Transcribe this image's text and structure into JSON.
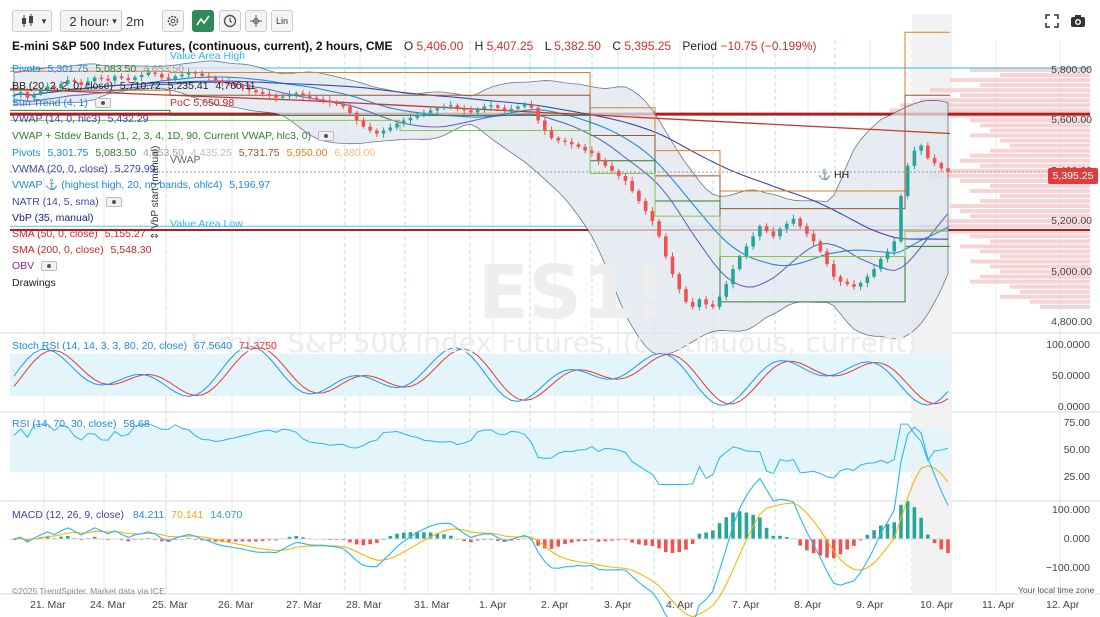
{
  "toolbar": {
    "chart_type_icon": "candlestick-icon",
    "interval": "2 hours",
    "interval_chevron": "▾",
    "secondary_interval": "2m",
    "settings_icon": "gear-icon",
    "indicator_icon": "indicator-icon",
    "clock_icon": "clock-icon",
    "crosshair_icon": "crosshair-icon",
    "scale_label": "Lin",
    "fullscreen_icon": "fullscreen-icon",
    "snapshot_icon": "camera-icon"
  },
  "header": {
    "title": "E-mini S&P 500 Index Futures, (continuous, current), 2 hours, CME",
    "o_label": "O",
    "o_value": "5,406.00",
    "h_label": "H",
    "h_value": "5,407.25",
    "l_label": "L",
    "l_value": "5,382.50",
    "c_label": "C",
    "c_value": "5,395.25",
    "period_label": "Period",
    "period_value": "−10.75 (−0.199%)"
  },
  "legend": {
    "pivots1": {
      "name": "Pivots",
      "v1": "5,301.75",
      "v2": "5,083.50",
      "v3": "4,653.50"
    },
    "bb": {
      "name": "BB (20, 2, 2, 0, close)",
      "v1": "5,710.72",
      "v2": "5,235.41",
      "v3": "4,760.11"
    },
    "sun_trend": {
      "name": "Sun Trend (4, 1)"
    },
    "vwap_hlc3": {
      "name": "VWAP (14, 0, hlc3)",
      "v1": "5,432.29"
    },
    "vwap_bands": {
      "name": "VWAP + Stdev Bands (1, 2, 3, 4, 1D, 90, Current VWAP, hlc3, 0)"
    },
    "pivots2": {
      "name": "Pivots",
      "v1": "5,301.75",
      "v2": "5,083.50",
      "v3": "4,653.50",
      "v4": "4,435.25",
      "v5": "5,731.75",
      "v6": "5,950.00",
      "v7": "6,380.00"
    },
    "vwma": {
      "name": "VWMA (20, 0, close)",
      "v1": "5,279.99"
    },
    "vwap_anchor": {
      "name": "VWAP ⚓ (highest high, 20, no bands, ohlc4)",
      "v1": "5,196.97"
    },
    "natr": {
      "name": "NATR (14, 5, sma)"
    },
    "vbp": {
      "name": "VbP (35, manual)"
    },
    "sma50": {
      "name": "SMA (50, 0, close)",
      "v1": "5,155.27"
    },
    "sma200": {
      "name": "SMA (200, 0, close)",
      "v1": "5,548.30"
    },
    "obv": {
      "name": "OBV"
    },
    "drawings": {
      "name": "Drawings"
    }
  },
  "annotations": {
    "value_area_high": "Value Area High",
    "value_area_low": "Value Area Low",
    "poc_label": "PoC",
    "poc_value": "5,650.98",
    "vwap_label": "VWAP",
    "hh_label": "HH",
    "vbp_start": "VbP start (manual)",
    "watermark": "ES1!",
    "watermark_sub": "E-mini S&P 500 Index Futures, (continuous, current)",
    "copyright": "©2025 TrendSpider. Market data via ICE",
    "local_time": "Your local time zone"
  },
  "price_axis": {
    "ticks": [
      "5,800.00",
      "5,600.00",
      "5,400.00",
      "5,200.00",
      "5,000.00",
      "4,800.00"
    ],
    "last_price": "5,395.25"
  },
  "stoch_rsi": {
    "label": "Stoch RSI (14, 14, 3, 3, 80, 20, close)",
    "k": "67.5640",
    "d": "71.3750",
    "ticks": [
      "100.0000",
      "50.0000",
      "0.0000"
    ]
  },
  "rsi": {
    "label": "RSI (14, 70, 30, close)",
    "value": "58.68",
    "ticks": [
      "75.00",
      "50.00",
      "25.00"
    ]
  },
  "macd": {
    "label": "MACD (12, 26, 9, close)",
    "macd": "84.211",
    "signal": "70.141",
    "hist": "14.070",
    "ticks": [
      "100.000",
      "0.000",
      "−100.000"
    ]
  },
  "time_axis": [
    "21. Mar",
    "24. Mar",
    "25. Mar",
    "26. Mar",
    "27. Mar",
    "28. Mar",
    "31. Mar",
    "1. Apr",
    "2. Apr",
    "3. Apr",
    "4. Apr",
    "7. Apr",
    "8. Apr",
    "9. Apr",
    "10. Apr",
    "11. Apr",
    "12. Apr"
  ],
  "colors": {
    "up": "#26a69a",
    "down": "#ef5350",
    "accent": "#2e8b57",
    "sma200": "#c0392b",
    "vwap_blue": "#2196f3",
    "pivot_orange": "#e67e22",
    "stoch_k": "#2196f3",
    "stoch_d": "#e53935",
    "rsi_line": "#29b6f6",
    "macd_line": "#29b6f6",
    "signal_line": "#f5b700"
  }
}
